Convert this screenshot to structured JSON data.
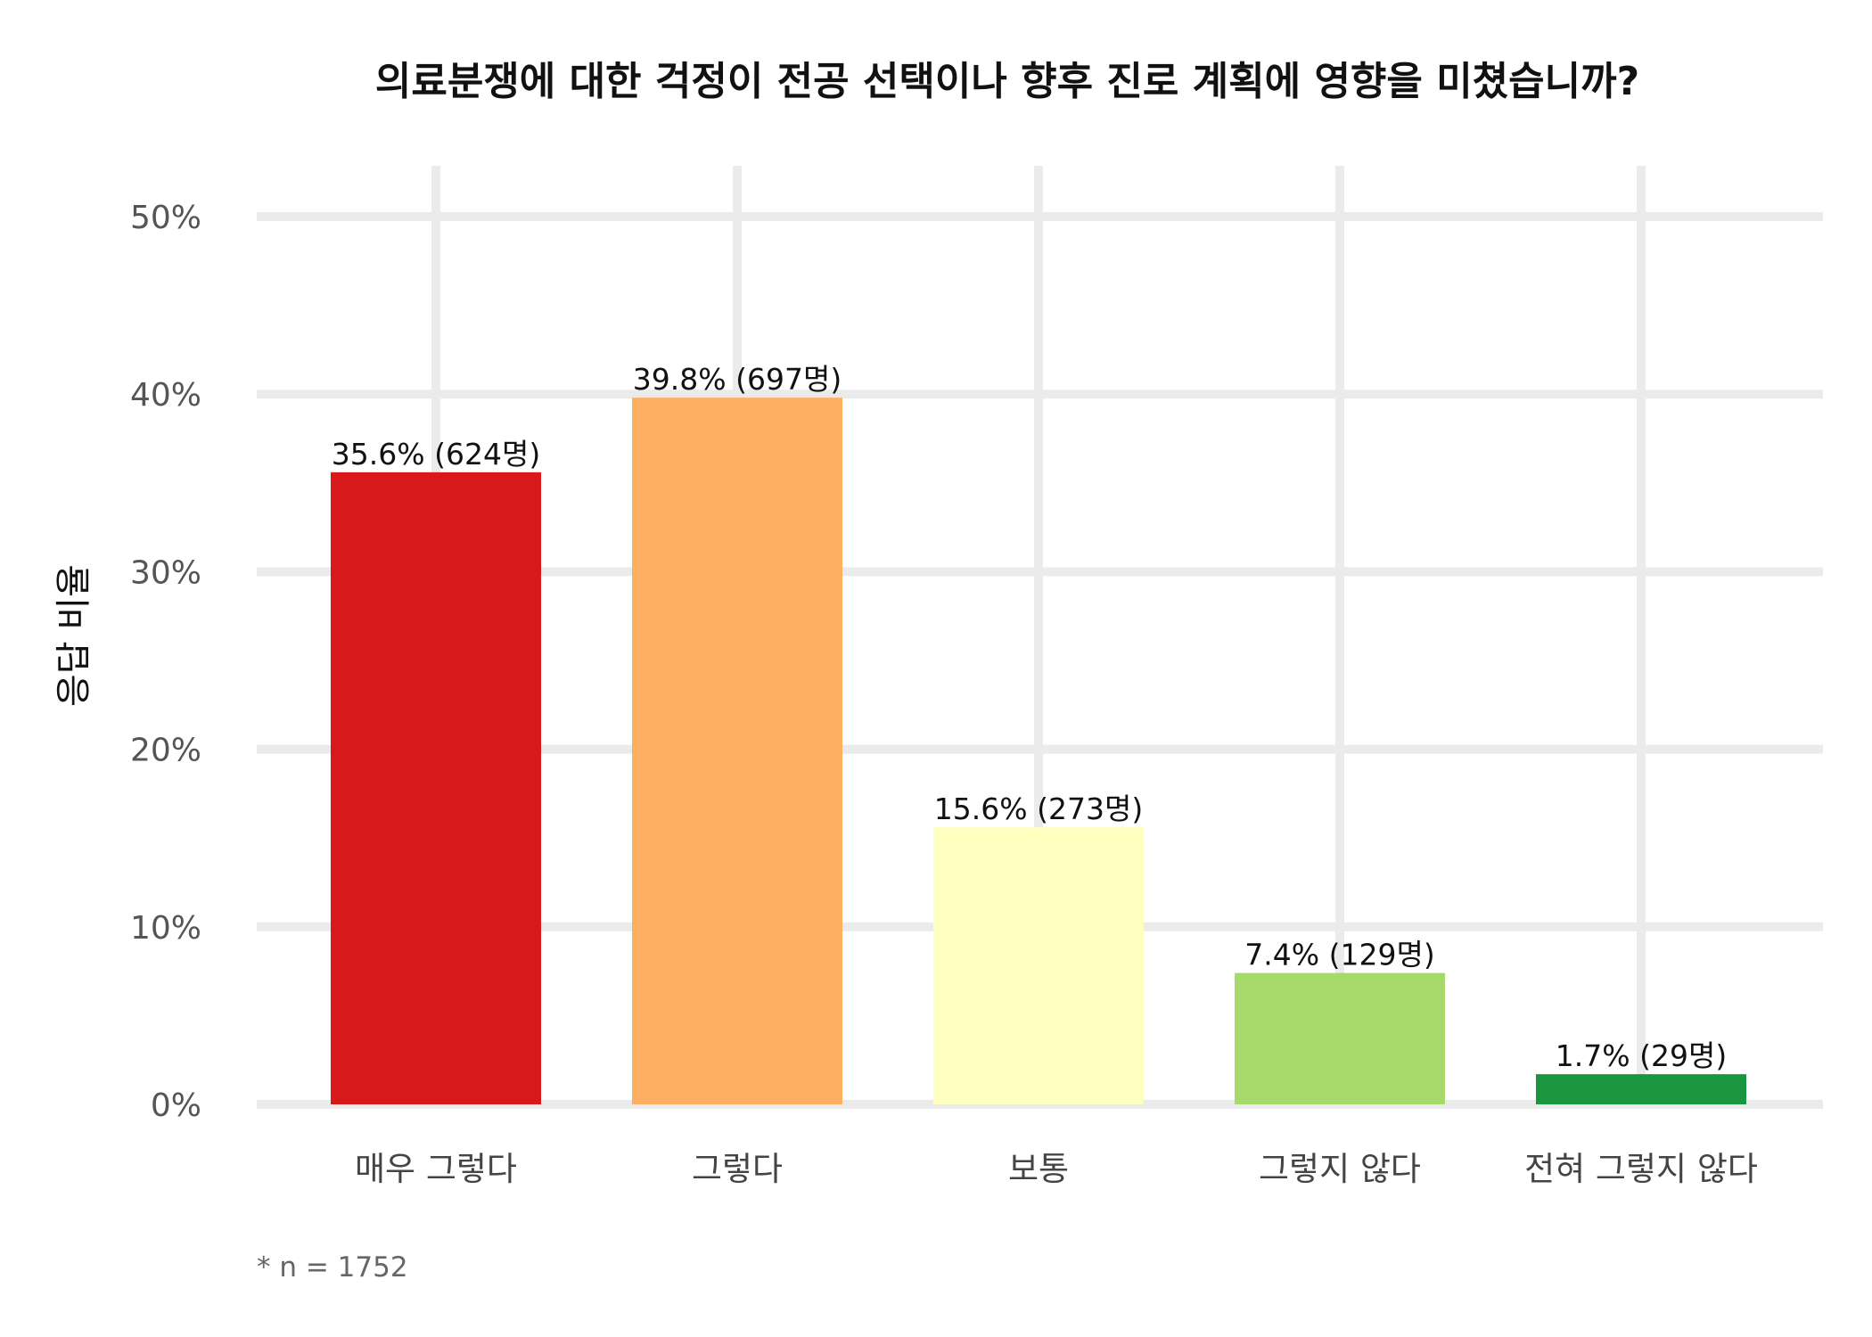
{
  "chart_data": {
    "type": "bar",
    "title": "의료분쟁에 대한 걱정이 전공 선택이나 향후 진로 계획에 영향을 미쳤습니까?",
    "xlabel": "",
    "ylabel": "응답 비율",
    "ylim": [
      0,
      50
    ],
    "ytick_values": [
      0,
      10,
      20,
      30,
      40,
      50
    ],
    "ytick_labels": [
      "0%",
      "10%",
      "20%",
      "30%",
      "40%",
      "50%"
    ],
    "grid": true,
    "legend": "none",
    "categories": [
      "매우 그렇다",
      "그렇다",
      "보통",
      "그렇지 않다",
      "전혀 그렇지 않다"
    ],
    "values": [
      35.6,
      39.8,
      15.6,
      7.4,
      1.7
    ],
    "data_labels": [
      "35.6% (624명)",
      "39.8% (697명)",
      "15.6% (273명)",
      "7.4% (129명)",
      "1.7% (29명)"
    ],
    "colors": [
      "#d7191c",
      "#fdae61",
      "#ffffbf",
      "#a6d96a",
      "#1a9641"
    ],
    "footnote": "* n = 1752"
  }
}
